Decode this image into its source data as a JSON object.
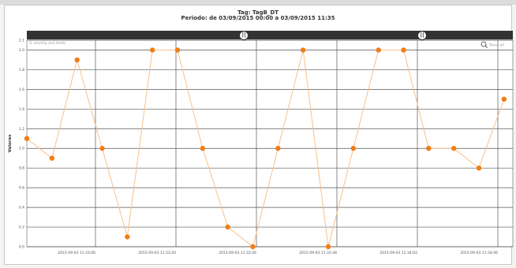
{
  "header": {
    "title": "Tag: TagB_DT",
    "subtitle": "Periodo: de 03/09/2015 00:00 a 03/09/2015 11:35"
  },
  "toolbar": {
    "annotation": "© startUp and feeds",
    "show_all_label": "Show all",
    "zoom_icon": "magnifier-icon",
    "handle_glyph": "||"
  },
  "colors": {
    "series": "#f07d14",
    "line": "#f7c08a",
    "navigator": "#333333",
    "grid": "#555555"
  },
  "chart_data": {
    "type": "line",
    "title": "Tag: TagB_DT",
    "subtitle": "Periodo: de 03/09/2015 00:00 a 03/09/2015 11:35",
    "ylabel": "Valores",
    "xlabel": "",
    "ylim": [
      0,
      2.1
    ],
    "yticks": [
      0,
      0.2,
      0.4,
      0.6,
      0.8,
      1.0,
      1.2,
      1.4,
      1.6,
      1.8,
      2.0,
      2.1
    ],
    "ytick_labels": [
      "0.0",
      "0.2",
      "0.4",
      "0.6",
      "0.8",
      "1.0",
      "1.2",
      "1.4",
      "1.6",
      "1.8",
      "2.0",
      "2.1"
    ],
    "x_tick_labels": [
      "2015-09-03 11:33:00",
      "2015-09-03 11:33:20",
      "2015-09-03 11:33:26",
      "2015-09-03 11:33:48",
      "2015-09-03 11:34:02",
      "2015-09-03 11:34:06"
    ],
    "grid": true,
    "series": [
      {
        "x": [
          0,
          1,
          2,
          3,
          4,
          5,
          6,
          7,
          8,
          9,
          10,
          11,
          12,
          13,
          14,
          15,
          16,
          17,
          18,
          19
        ],
        "values": [
          1.1,
          0.9,
          1.9,
          1.0,
          0.1,
          2.0,
          2.0,
          1.0,
          0.2,
          0.0,
          1.0,
          2.0,
          0.0,
          1.0,
          2.0,
          2.0,
          1.0,
          1.0,
          0.8,
          1.5
        ]
      }
    ]
  }
}
